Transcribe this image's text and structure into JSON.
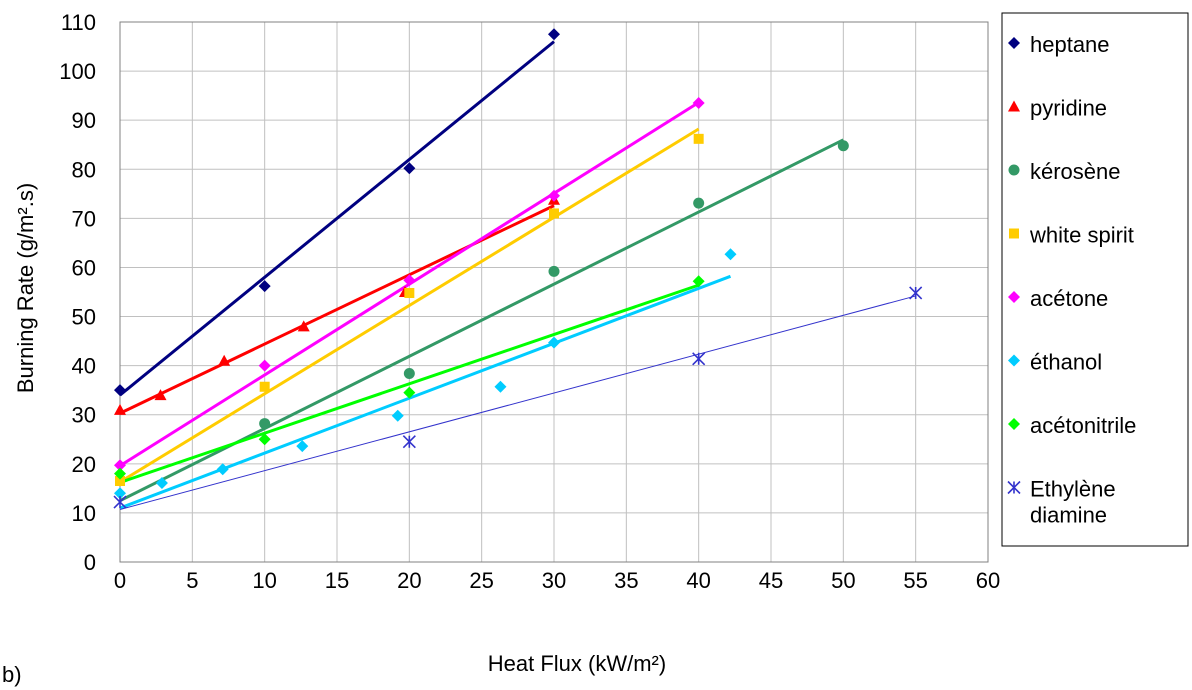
{
  "panel_label": "b)",
  "chart_data": {
    "type": "scatter",
    "title": "",
    "xlabel": "Heat Flux (kW/m²)",
    "ylabel": "Burning Rate (g/m².s)",
    "xlim": [
      0,
      60
    ],
    "ylim": [
      0,
      110
    ],
    "x_ticks": [
      0,
      5,
      10,
      15,
      20,
      25,
      30,
      35,
      40,
      45,
      50,
      55,
      60
    ],
    "y_ticks": [
      0,
      10,
      20,
      30,
      40,
      50,
      60,
      70,
      80,
      90,
      100,
      110
    ],
    "grid": true,
    "legend_position": "right",
    "series": [
      {
        "name": "heptane",
        "color": "#000080",
        "marker": "diamond",
        "points": [
          [
            0,
            35
          ],
          [
            10,
            56.2
          ],
          [
            20,
            80.2
          ],
          [
            30,
            107.5
          ]
        ],
        "fit": [
          [
            0,
            34
          ],
          [
            30,
            106
          ]
        ]
      },
      {
        "name": "pyridine",
        "color": "#ff0000",
        "marker": "triangle",
        "points": [
          [
            0,
            31
          ],
          [
            2.8,
            34
          ],
          [
            7.2,
            41
          ],
          [
            12.7,
            48
          ],
          [
            19.7,
            55
          ],
          [
            30,
            73.8
          ]
        ],
        "fit": [
          [
            0,
            30.3
          ],
          [
            30,
            72.6
          ]
        ]
      },
      {
        "name": "kérosène",
        "color": "#339966",
        "marker": "circle",
        "points": [
          [
            10,
            28.2
          ],
          [
            20,
            38.4
          ],
          [
            30,
            59.2
          ],
          [
            40,
            73.1
          ],
          [
            50,
            84.8
          ]
        ],
        "fit": [
          [
            0,
            12.5
          ],
          [
            50,
            86
          ]
        ]
      },
      {
        "name": "white spirit",
        "color": "#ffcc00",
        "marker": "square",
        "points": [
          [
            0,
            16.5
          ],
          [
            10,
            35.7
          ],
          [
            20,
            54.8
          ],
          [
            30,
            71
          ],
          [
            40,
            86.2
          ]
        ],
        "fit": [
          [
            0,
            16.3
          ],
          [
            40,
            88.2
          ]
        ]
      },
      {
        "name": "acétone",
        "color": "#ff00ff",
        "marker": "diamond",
        "points": [
          [
            0,
            19.7
          ],
          [
            10,
            40
          ],
          [
            20,
            57.4
          ],
          [
            30,
            74.6
          ],
          [
            40,
            93.5
          ]
        ],
        "fit": [
          [
            0,
            19.6
          ],
          [
            40,
            93.6
          ]
        ]
      },
      {
        "name": "éthanol",
        "color": "#00ccff",
        "marker": "diamond",
        "points": [
          [
            0,
            14
          ],
          [
            2.9,
            16.1
          ],
          [
            7.1,
            18.9
          ],
          [
            12.6,
            23.6
          ],
          [
            19.2,
            29.8
          ],
          [
            26.3,
            35.7
          ],
          [
            30,
            44.7
          ],
          [
            42.2,
            62.7
          ]
        ],
        "fit": [
          [
            0,
            11
          ],
          [
            42.2,
            58.2
          ]
        ]
      },
      {
        "name": "acétonitrile",
        "color": "#00ff00",
        "marker": "diamond",
        "points": [
          [
            0,
            18
          ],
          [
            10,
            25
          ],
          [
            20,
            34.5
          ],
          [
            40,
            57.2
          ]
        ],
        "fit": [
          [
            0,
            16.2
          ],
          [
            40,
            56.4
          ]
        ]
      },
      {
        "name": "Ethylène diamine",
        "legend_lines": [
          "Ethylène",
          "diamine"
        ],
        "color": "#3333cc",
        "marker": "asterisk",
        "points": [
          [
            0,
            12.2
          ],
          [
            20,
            24.5
          ],
          [
            40,
            41.4
          ],
          [
            55,
            54.8
          ]
        ],
        "fit": [
          [
            0,
            10.7
          ],
          [
            55,
            54.2
          ]
        ]
      }
    ]
  }
}
